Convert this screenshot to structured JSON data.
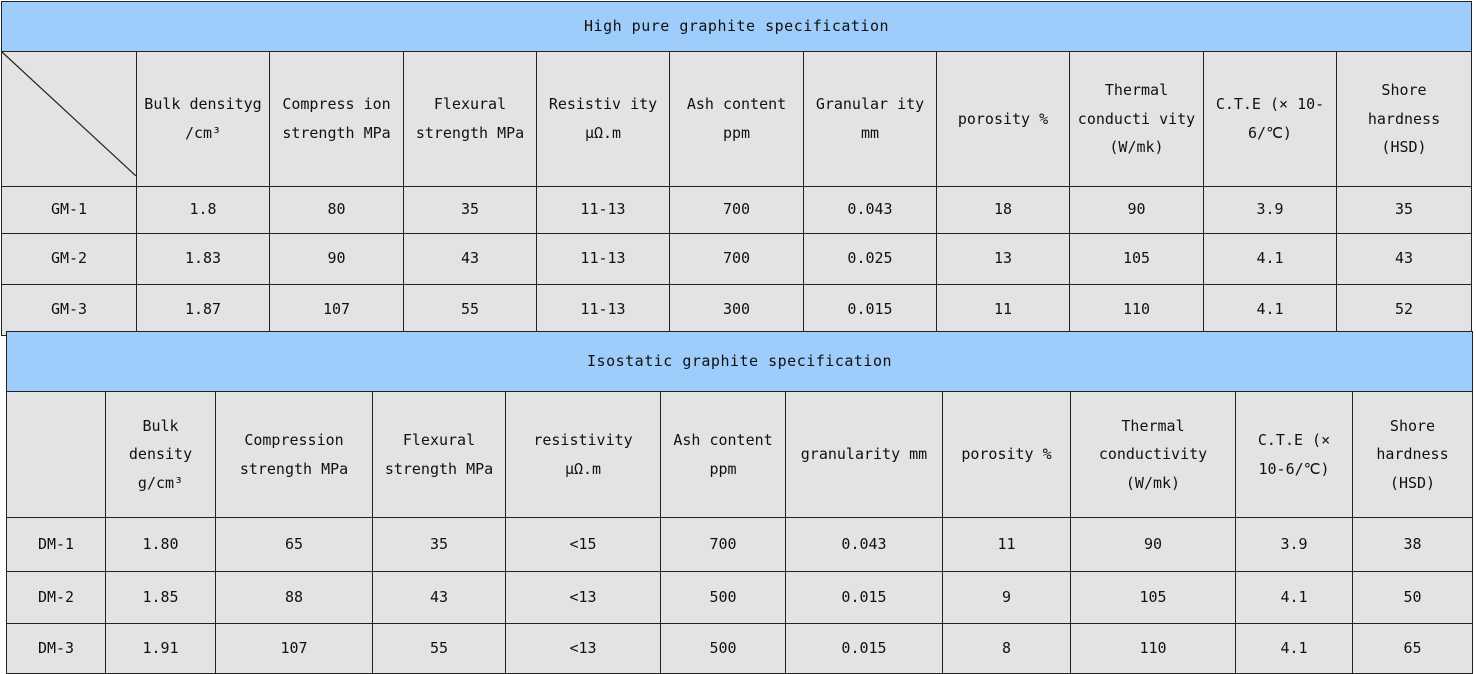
{
  "tables": [
    {
      "title": "High pure graphite specification",
      "headers": [
        "Bulk densityg /cm³",
        "Compress ion strength MPa",
        "Flexural strength MPa",
        "Resistiv ity μΩ.m",
        "Ash content ppm",
        "Granular ity mm",
        "porosity %",
        "Thermal conducti vity (W/mk)",
        "C.T.E (× 10-6/℃)",
        "Shore hardness (HSD)"
      ],
      "rows": [
        [
          "GM-1",
          "1.8",
          "80",
          "35",
          "11-13",
          "700",
          "0.043",
          "18",
          "90",
          "3.9",
          "35"
        ],
        [
          "GM-2",
          "1.83",
          "90",
          "43",
          "11-13",
          "700",
          "0.025",
          "13",
          "105",
          "4.1",
          "43"
        ],
        [
          "GM-3",
          "1.87",
          "107",
          "55",
          "11-13",
          "300",
          "0.015",
          "11",
          "110",
          "4.1",
          "52"
        ]
      ]
    },
    {
      "title": "Isostatic graphite specification",
      "headers": [
        "Bulk density g/cm³",
        "Compression strength MPa",
        "Flexural strength MPa",
        "resistivity μΩ.m",
        "Ash content ppm",
        "granularity mm",
        "porosity %",
        "Thermal conductivity (W/mk)",
        "C.T.E (× 10-6/℃)",
        "Shore hardness (HSD)"
      ],
      "rows": [
        [
          "DM-1",
          "1.80",
          "65",
          "35",
          "<15",
          "700",
          "0.043",
          "11",
          "90",
          "3.9",
          "38"
        ],
        [
          "DM-2",
          "1.85",
          "88",
          "43",
          "<13",
          "500",
          "0.015",
          "9",
          "105",
          "4.1",
          "50"
        ],
        [
          "DM-3",
          "1.91",
          "107",
          "55",
          "<13",
          "500",
          "0.015",
          "8",
          "110",
          "4.1",
          "65"
        ]
      ]
    }
  ]
}
